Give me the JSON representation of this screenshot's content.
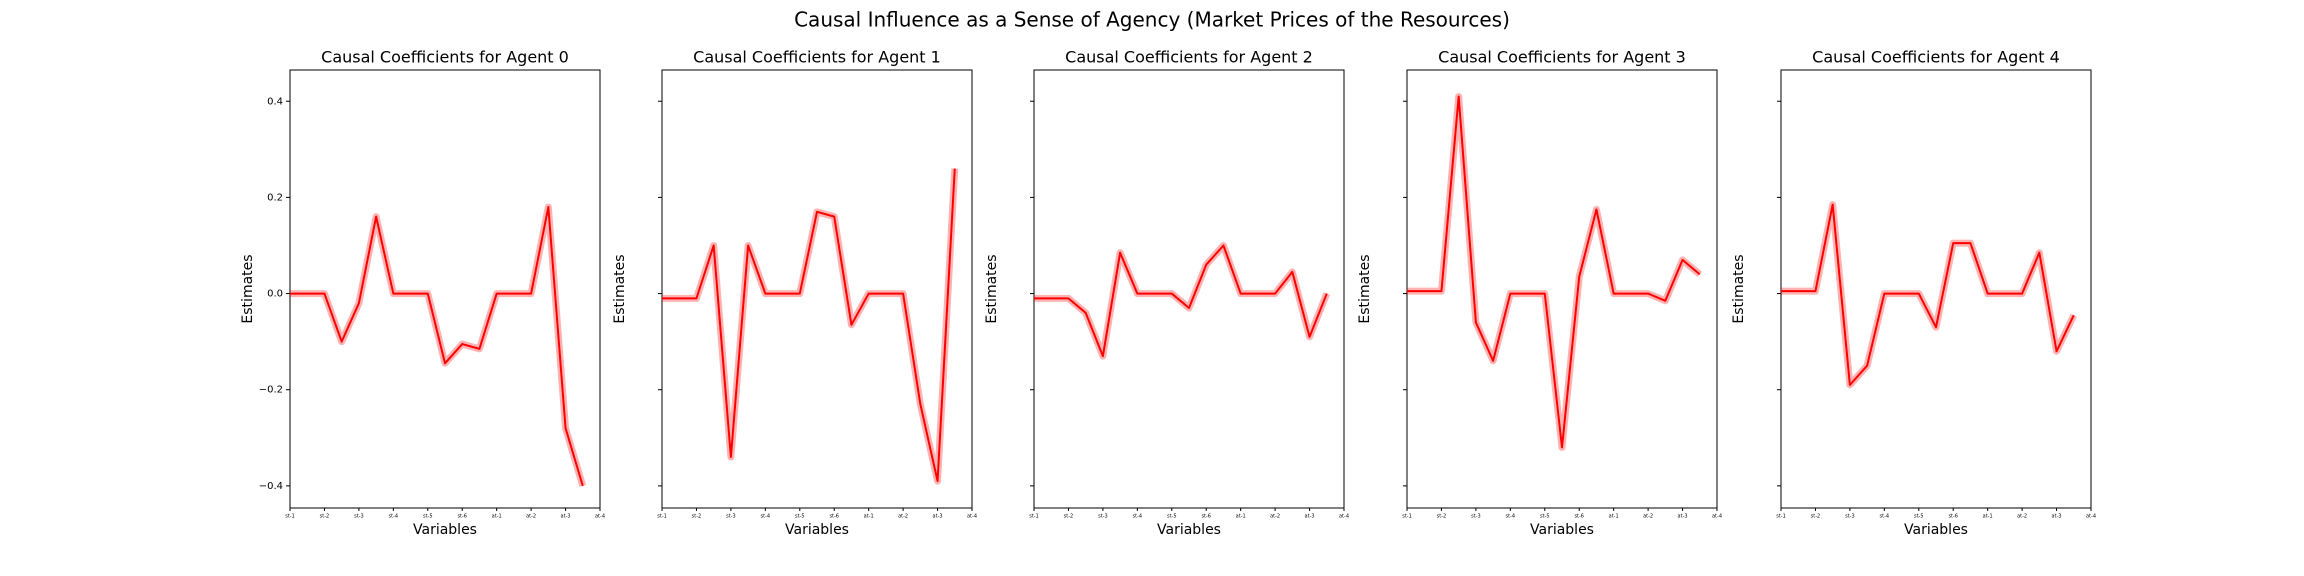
{
  "title": "Causal Influence as a Sense of Agency (Market Prices of the Resources)",
  "chart_data": [
    {
      "type": "line",
      "title": "Causal Coefficients for Agent 0",
      "xlabel": "Variables",
      "ylabel": "Estimates",
      "x": [
        0,
        1,
        2,
        3,
        4,
        5,
        6,
        7,
        8,
        9,
        10,
        11,
        12,
        13,
        14,
        15,
        16,
        17
      ],
      "xlim": [
        0,
        18
      ],
      "xticks": [
        {
          "value": 0,
          "label": "st-1"
        },
        {
          "value": 2,
          "label": "st-2"
        },
        {
          "value": 4,
          "label": "st-3"
        },
        {
          "value": 6,
          "label": "st-4"
        },
        {
          "value": 8,
          "label": "st-5"
        },
        {
          "value": 10,
          "label": "st-6"
        },
        {
          "value": 12,
          "label": "at-1"
        },
        {
          "value": 14,
          "label": "at-2"
        },
        {
          "value": 16,
          "label": "at-3"
        },
        {
          "value": 18,
          "label": "at-4"
        }
      ],
      "ylim": [
        -0.446,
        0.465
      ],
      "yticks": [
        {
          "value": -0.4,
          "label": "−0.4"
        },
        {
          "value": -0.2,
          "label": "−0.2"
        },
        {
          "value": 0,
          "label": "0.0"
        },
        0.2,
        0.4
      ],
      "series": [
        {
          "color": "#ff0000",
          "values": [
            0.0,
            0.0,
            0.0,
            -0.1,
            -0.02,
            0.16,
            0.0,
            0.0,
            0.0,
            -0.145,
            -0.105,
            -0.115,
            0.0,
            0.0,
            0.0,
            0.18,
            -0.28,
            -0.4
          ]
        }
      ]
    },
    {
      "type": "line",
      "title": "Causal Coefficients for Agent 1",
      "xlabel": "Variables",
      "ylabel": "Estimates",
      "x": [
        0,
        1,
        2,
        3,
        4,
        5,
        6,
        7,
        8,
        9,
        10,
        11,
        12,
        13,
        14,
        15,
        16,
        17
      ],
      "xlim": [
        0,
        18
      ],
      "xticks": [
        {
          "value": 0,
          "label": "st-1"
        },
        {
          "value": 2,
          "label": "st-2"
        },
        {
          "value": 4,
          "label": "st-3"
        },
        {
          "value": 6,
          "label": "st-4"
        },
        {
          "value": 8,
          "label": "st-5"
        },
        {
          "value": 10,
          "label": "st-6"
        },
        {
          "value": 12,
          "label": "at-1"
        },
        {
          "value": 14,
          "label": "at-2"
        },
        {
          "value": 16,
          "label": "at-3"
        },
        {
          "value": 18,
          "label": "at-4"
        }
      ],
      "ylim": [
        -0.446,
        0.465
      ],
      "series": [
        {
          "color": "#ff0000",
          "values": [
            -0.01,
            -0.01,
            -0.01,
            0.1,
            -0.34,
            0.1,
            0.0,
            0.0,
            0.0,
            0.17,
            0.16,
            -0.065,
            0.0,
            0.0,
            0.0,
            -0.23,
            -0.39,
            0.26
          ]
        }
      ]
    },
    {
      "type": "line",
      "title": "Causal Coefficients for Agent 2",
      "xlabel": "Variables",
      "ylabel": "Estimates",
      "x": [
        0,
        1,
        2,
        3,
        4,
        5,
        6,
        7,
        8,
        9,
        10,
        11,
        12,
        13,
        14,
        15,
        16,
        17
      ],
      "xlim": [
        0,
        18
      ],
      "xticks": [
        {
          "value": 0,
          "label": "st-1"
        },
        {
          "value": 2,
          "label": "st-2"
        },
        {
          "value": 4,
          "label": "st-3"
        },
        {
          "value": 6,
          "label": "st-4"
        },
        {
          "value": 8,
          "label": "st-5"
        },
        {
          "value": 10,
          "label": "st-6"
        },
        {
          "value": 12,
          "label": "at-1"
        },
        {
          "value": 14,
          "label": "at-2"
        },
        {
          "value": 16,
          "label": "at-3"
        },
        {
          "value": 18,
          "label": "at-4"
        }
      ],
      "ylim": [
        -0.446,
        0.465
      ],
      "series": [
        {
          "color": "#ff0000",
          "values": [
            -0.01,
            -0.01,
            -0.01,
            -0.04,
            -0.13,
            0.085,
            0.0,
            0.0,
            0.0,
            -0.03,
            0.06,
            0.1,
            0.0,
            0.0,
            0.0,
            0.045,
            -0.09,
            0.0
          ]
        }
      ]
    },
    {
      "type": "line",
      "title": "Causal Coefficients for Agent 3",
      "xlabel": "Variables",
      "ylabel": "Estimates",
      "x": [
        0,
        1,
        2,
        3,
        4,
        5,
        6,
        7,
        8,
        9,
        10,
        11,
        12,
        13,
        14,
        15,
        16,
        17
      ],
      "xlim": [
        0,
        18
      ],
      "xticks": [
        {
          "value": 0,
          "label": "st-1"
        },
        {
          "value": 2,
          "label": "st-2"
        },
        {
          "value": 4,
          "label": "st-3"
        },
        {
          "value": 6,
          "label": "st-4"
        },
        {
          "value": 8,
          "label": "st-5"
        },
        {
          "value": 10,
          "label": "st-6"
        },
        {
          "value": 12,
          "label": "at-1"
        },
        {
          "value": 14,
          "label": "at-2"
        },
        {
          "value": 16,
          "label": "at-3"
        },
        {
          "value": 18,
          "label": "at-4"
        }
      ],
      "ylim": [
        -0.446,
        0.465
      ],
      "series": [
        {
          "color": "#ff0000",
          "values": [
            0.005,
            0.005,
            0.005,
            0.41,
            -0.06,
            -0.14,
            0.0,
            0.0,
            0.0,
            -0.32,
            0.035,
            0.175,
            0.0,
            0.0,
            0.0,
            -0.015,
            0.07,
            0.04
          ]
        }
      ]
    },
    {
      "type": "line",
      "title": "Causal Coefficients for Agent 4",
      "xlabel": "Variables",
      "ylabel": "Estimates",
      "x": [
        0,
        1,
        2,
        3,
        4,
        5,
        6,
        7,
        8,
        9,
        10,
        11,
        12,
        13,
        14,
        15,
        16,
        17
      ],
      "xlim": [
        0,
        18
      ],
      "xticks": [
        {
          "value": 0,
          "label": "st-1"
        },
        {
          "value": 2,
          "label": "st-2"
        },
        {
          "value": 4,
          "label": "st-3"
        },
        {
          "value": 6,
          "label": "st-4"
        },
        {
          "value": 8,
          "label": "st-5"
        },
        {
          "value": 10,
          "label": "st-6"
        },
        {
          "value": 12,
          "label": "at-1"
        },
        {
          "value": 14,
          "label": "at-2"
        },
        {
          "value": 16,
          "label": "at-3"
        },
        {
          "value": 18,
          "label": "at-4"
        }
      ],
      "ylim": [
        -0.446,
        0.465
      ],
      "series": [
        {
          "color": "#ff0000",
          "values": [
            0.005,
            0.005,
            0.005,
            0.185,
            -0.19,
            -0.15,
            0.0,
            0.0,
            0.0,
            -0.07,
            0.105,
            0.105,
            0.0,
            0.0,
            0.0,
            0.085,
            -0.12,
            -0.045
          ]
        }
      ]
    }
  ]
}
